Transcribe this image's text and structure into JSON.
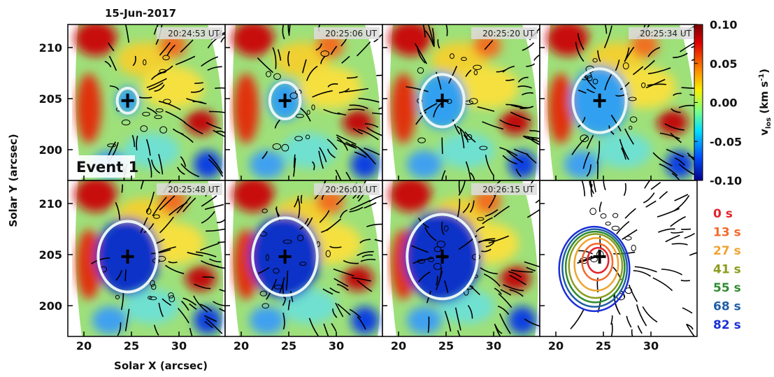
{
  "date": "15-Jun-2017",
  "event_label": "Event 1",
  "panels": [
    {
      "time": "20:24:53 UT"
    },
    {
      "time": "20:25:06 UT"
    },
    {
      "time": "20:25:20 UT"
    },
    {
      "time": "20:25:34 UT"
    },
    {
      "time": "20:25:48 UT"
    },
    {
      "time": "20:26:01 UT"
    },
    {
      "time": "20:26:15 UT"
    }
  ],
  "x_axis": {
    "label": "Solar X (arcsec)",
    "ticks": [
      "20",
      "25",
      "30"
    ]
  },
  "y_axis": {
    "label": "Solar Y (arcsec)",
    "ticks": [
      "210",
      "205",
      "200"
    ]
  },
  "colorbar": {
    "symbol": "v",
    "subscript": "los",
    "unit_start": " (km s",
    "unit_exponent": "-1",
    "unit_end": ")",
    "ticks": [
      "0.10",
      "0.05",
      "0.00",
      "-0.05",
      "-0.10"
    ]
  },
  "legend": [
    {
      "label": "0 s",
      "color": "#e3212b"
    },
    {
      "label": "13 s",
      "color": "#f26a2a"
    },
    {
      "label": "27 s",
      "color": "#f0a431"
    },
    {
      "label": "41 s",
      "color": "#8c9c1f"
    },
    {
      "label": "55 s",
      "color": "#2f8c30"
    },
    {
      "label": "68 s",
      "color": "#1f5ea5"
    },
    {
      "label": "82 s",
      "color": "#1b2fd8"
    }
  ]
}
